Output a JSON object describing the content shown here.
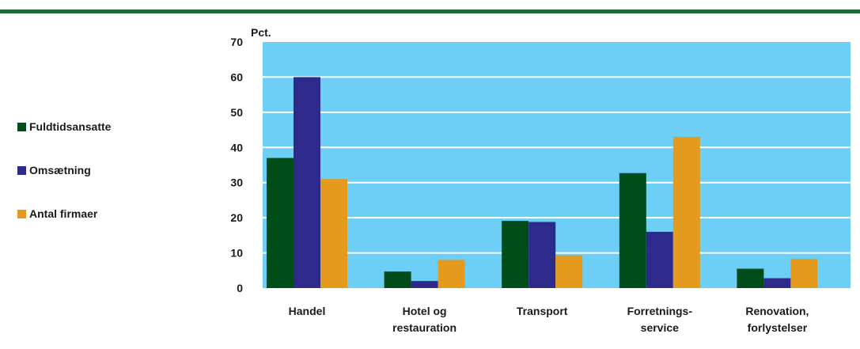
{
  "chart_data": {
    "type": "bar",
    "title": "",
    "xlabel": "",
    "ylabel": "Pct.",
    "ylim": [
      0,
      70
    ],
    "yticks": [
      0,
      10,
      20,
      30,
      40,
      50,
      60,
      70
    ],
    "grid": true,
    "legend_position": "left",
    "plot_background": "#6dcff6",
    "categories": [
      [
        "Handel"
      ],
      [
        "Hotel og",
        "restauration"
      ],
      [
        "Transport"
      ],
      [
        "Forretnings-",
        "service"
      ],
      [
        "Renovation,",
        "forlystelser"
      ]
    ],
    "series": [
      {
        "name": "Fuldtidsansatte",
        "color": "#004d1a",
        "values": [
          37,
          4.7,
          19.1,
          32.7,
          5.5
        ]
      },
      {
        "name": "Omsætning",
        "color": "#2e2a8c",
        "values": [
          60,
          2,
          18.8,
          16,
          2.8
        ]
      },
      {
        "name": "Antal firmaer",
        "color": "#e39a1d",
        "values": [
          31,
          8,
          9.3,
          43,
          8.3
        ]
      }
    ]
  }
}
